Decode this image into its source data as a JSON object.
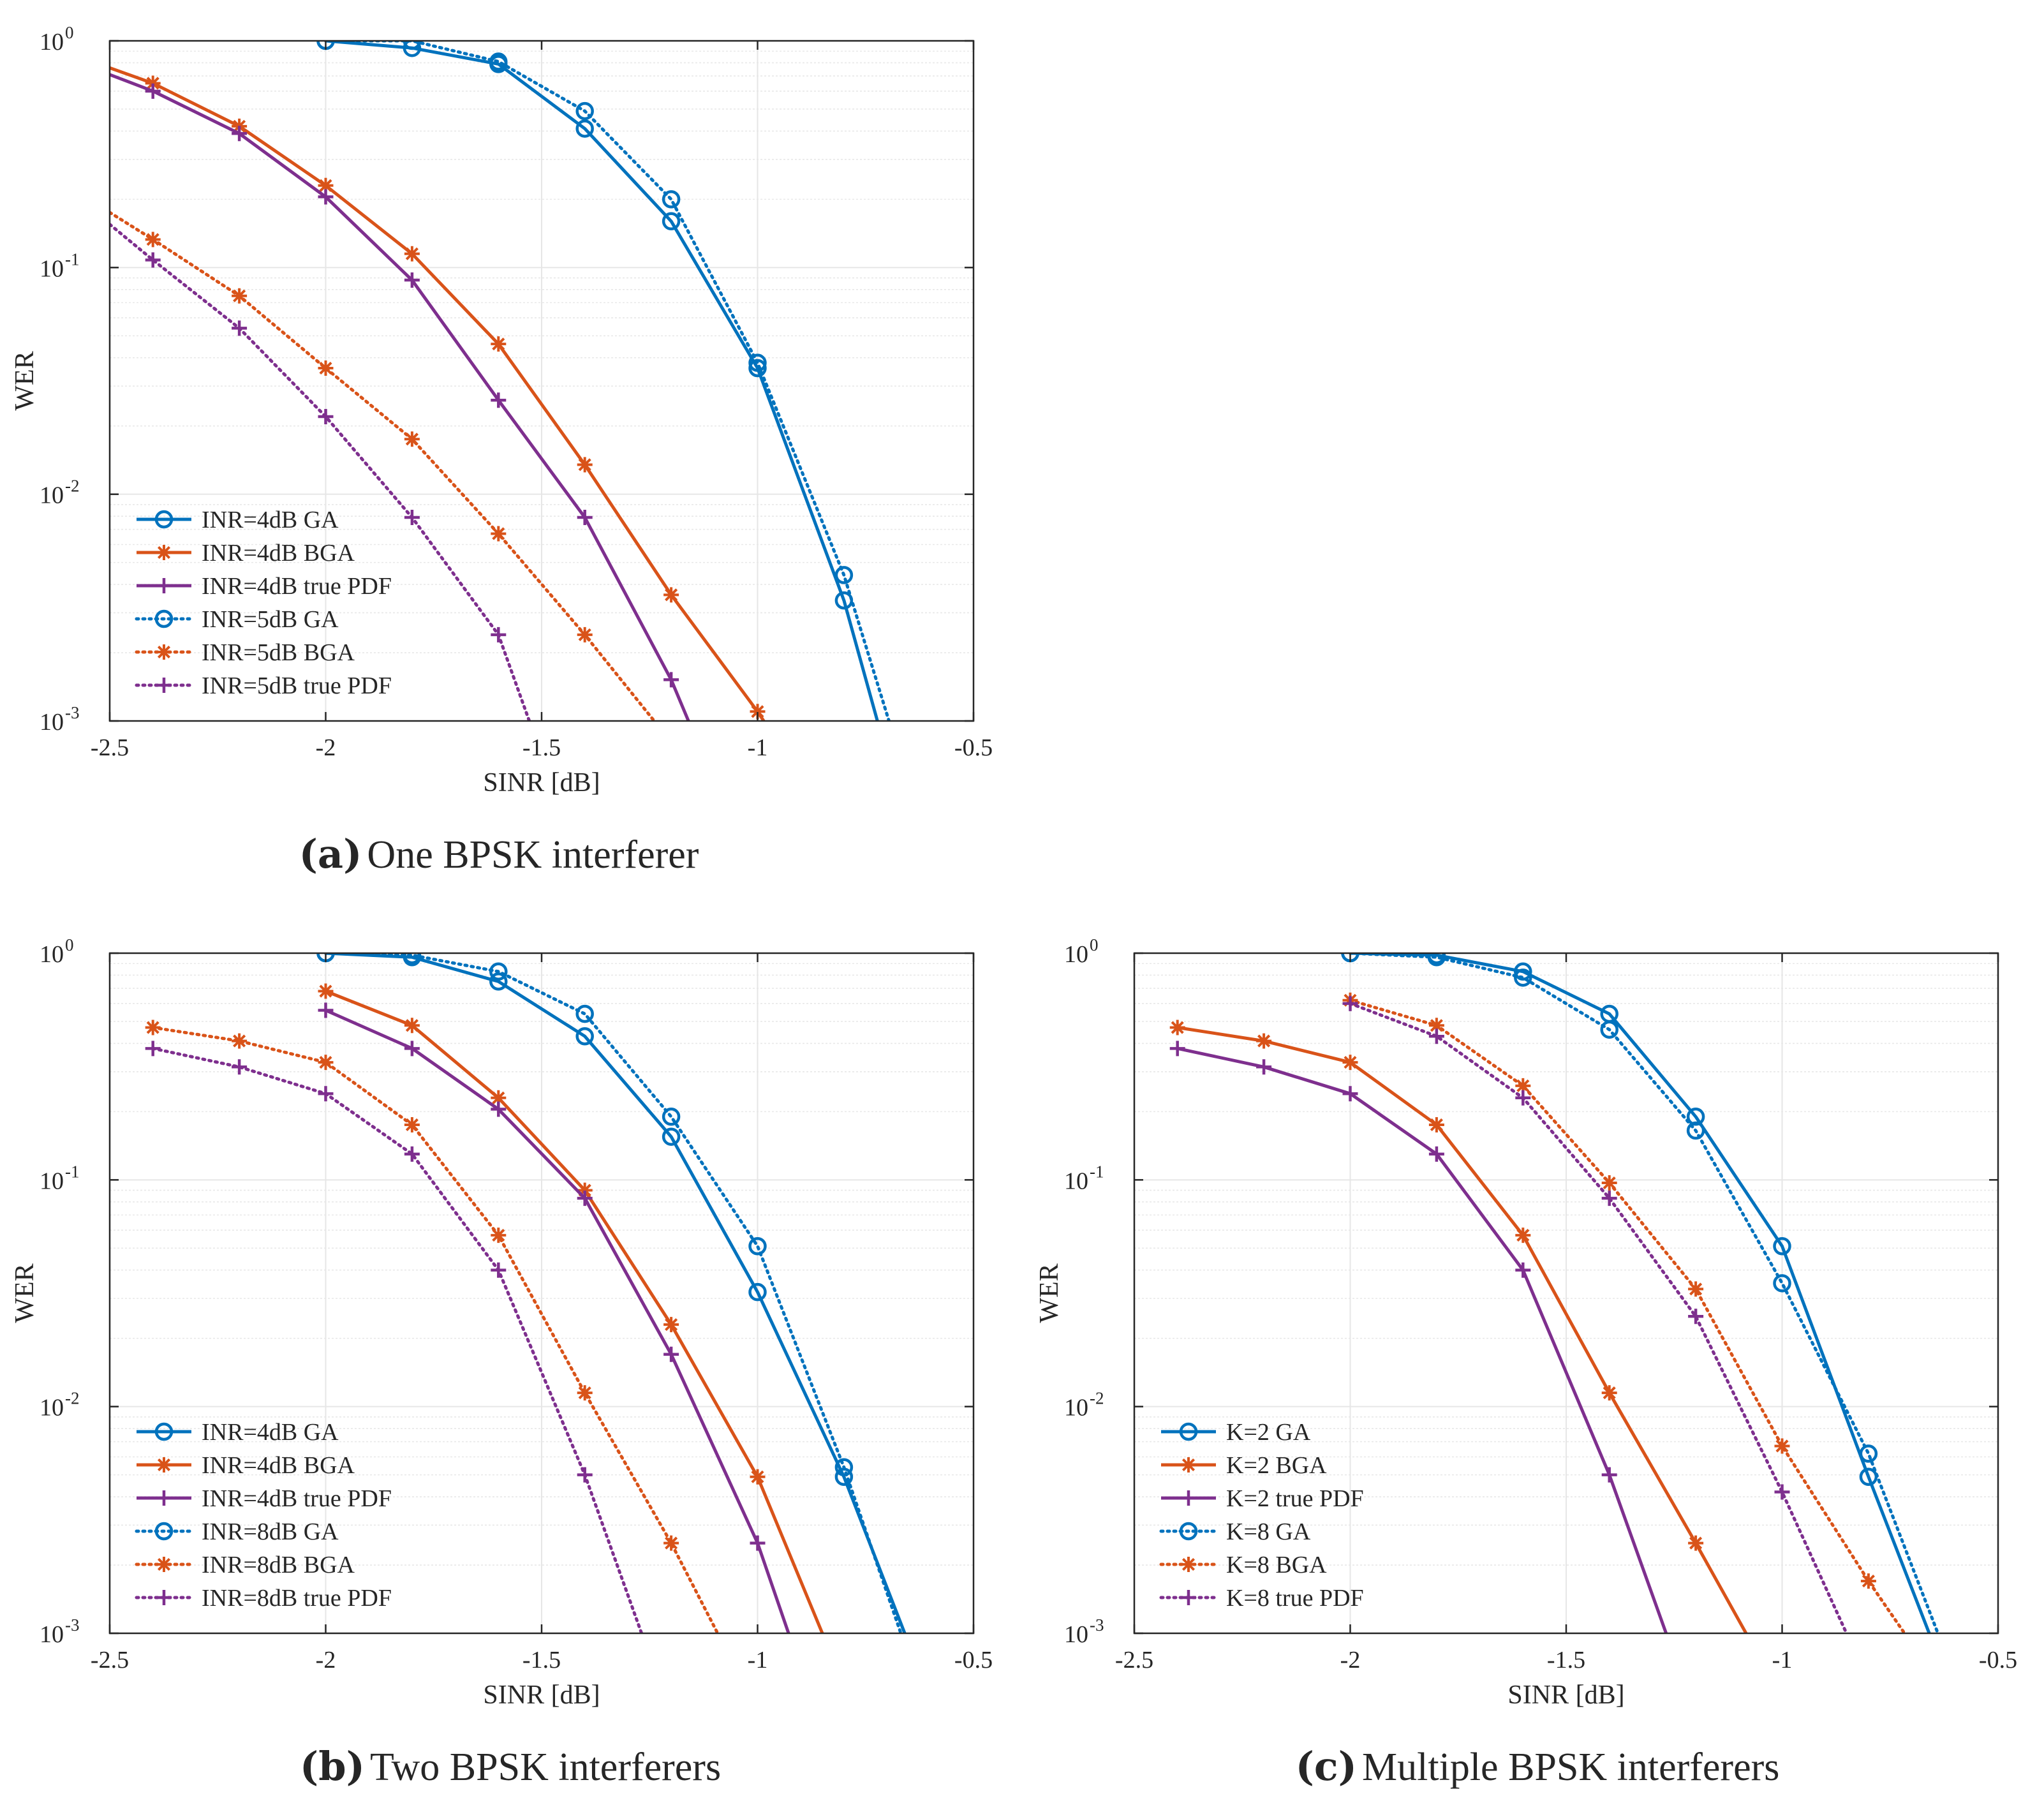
{
  "figure": {
    "captions": [
      {
        "letter": "(a)",
        "text": "One BPSK interferer"
      },
      {
        "letter": "(b)",
        "text": "Two BPSK interferers"
      },
      {
        "letter": "(c)",
        "text": "Multiple BPSK interferers"
      }
    ]
  },
  "colors": {
    "blue": "#0072BD",
    "orange": "#D95319",
    "purple": "#7E2F8E",
    "grid": "#e6e6e6",
    "axis": "#262626"
  },
  "chart_data": [
    {
      "id": "a",
      "type": "line",
      "title": "",
      "xlabel": "SINR [dB]",
      "ylabel": "WER",
      "yscale": "log",
      "xlim": [
        -2.5,
        -0.5
      ],
      "ylim": [
        0.001,
        1
      ],
      "xticks": [
        -2.5,
        -2,
        -1.5,
        -1,
        -0.5
      ],
      "xtick_labels": [
        "-2.5",
        "-2",
        "-1.5",
        "-1",
        "-0.5"
      ],
      "yticks": [
        0.001,
        0.01,
        0.1,
        1
      ],
      "ytick_labels": [
        {
          "base": "10",
          "exp": "-3"
        },
        {
          "base": "10",
          "exp": "-2"
        },
        {
          "base": "10",
          "exp": "-1"
        },
        {
          "base": "10",
          "exp": "0"
        }
      ],
      "grid": true,
      "legend_position": "bottom-left",
      "series": [
        {
          "name": "INR=4dB GA",
          "color": "#0072BD",
          "marker": "circle",
          "style": "solid",
          "x": [
            -2.0,
            -1.8,
            -1.6,
            -1.4,
            -1.2,
            -1.0,
            -0.8,
            -0.7
          ],
          "y": [
            1.0,
            0.93,
            0.79,
            0.41,
            0.16,
            0.036,
            0.0034,
            0.0007
          ]
        },
        {
          "name": "INR=4dB BGA",
          "color": "#D95319",
          "marker": "asterisk",
          "style": "solid",
          "x": [
            -2.5,
            -2.4,
            -2.2,
            -2.0,
            -1.8,
            -1.6,
            -1.4,
            -1.2,
            -1.0,
            -0.97
          ],
          "y": [
            0.76,
            0.65,
            0.42,
            0.23,
            0.115,
            0.046,
            0.0135,
            0.0036,
            0.0011,
            0.0009
          ]
        },
        {
          "name": "INR=4dB true PDF",
          "color": "#7E2F8E",
          "marker": "plus",
          "style": "solid",
          "x": [
            -2.5,
            -2.4,
            -2.2,
            -2.0,
            -1.8,
            -1.6,
            -1.4,
            -1.2,
            -1.15
          ],
          "y": [
            0.71,
            0.6,
            0.39,
            0.205,
            0.088,
            0.026,
            0.0079,
            0.00152,
            0.0009
          ]
        },
        {
          "name": "INR=5dB GA",
          "color": "#0072BD",
          "marker": "circle",
          "style": "dotted",
          "x": [
            -2.0,
            -1.8,
            -1.6,
            -1.4,
            -1.2,
            -1.0,
            -0.8,
            -0.68
          ],
          "y": [
            1.0,
            1.0,
            0.81,
            0.49,
            0.2,
            0.038,
            0.0044,
            0.0008
          ]
        },
        {
          "name": "INR=5dB BGA",
          "color": "#D95319",
          "marker": "asterisk",
          "style": "dotted",
          "x": [
            -2.5,
            -2.4,
            -2.2,
            -2.0,
            -1.8,
            -1.6,
            -1.4,
            -1.22
          ],
          "y": [
            0.175,
            0.133,
            0.075,
            0.036,
            0.0175,
            0.0067,
            0.0024,
            0.0009
          ]
        },
        {
          "name": "INR=5dB true PDF",
          "color": "#7E2F8E",
          "marker": "plus",
          "style": "dotted",
          "x": [
            -2.5,
            -2.4,
            -2.2,
            -2.0,
            -1.8,
            -1.6,
            -1.52
          ],
          "y": [
            0.155,
            0.108,
            0.054,
            0.022,
            0.0079,
            0.0024,
            0.0009
          ]
        }
      ]
    },
    {
      "id": "b",
      "type": "line",
      "title": "",
      "xlabel": "SINR [dB]",
      "ylabel": "WER",
      "yscale": "log",
      "xlim": [
        -2.5,
        -0.5
      ],
      "ylim": [
        0.001,
        1
      ],
      "xticks": [
        -2.5,
        -2,
        -1.5,
        -1,
        -0.5
      ],
      "xtick_labels": [
        "-2.5",
        "-2",
        "-1.5",
        "-1",
        "-0.5"
      ],
      "yticks": [
        0.001,
        0.01,
        0.1,
        1
      ],
      "ytick_labels": [
        {
          "base": "10",
          "exp": "-3"
        },
        {
          "base": "10",
          "exp": "-2"
        },
        {
          "base": "10",
          "exp": "-1"
        },
        {
          "base": "10",
          "exp": "0"
        }
      ],
      "grid": true,
      "legend_position": "bottom-left",
      "series": [
        {
          "name": "INR=4dB GA",
          "color": "#0072BD",
          "marker": "circle",
          "style": "solid",
          "x": [
            -2.0,
            -1.8,
            -1.6,
            -1.4,
            -1.2,
            -1.0,
            -0.8,
            -0.65
          ],
          "y": [
            1.0,
            0.96,
            0.75,
            0.43,
            0.155,
            0.032,
            0.0049,
            0.0009
          ]
        },
        {
          "name": "INR=4dB BGA",
          "color": "#D95319",
          "marker": "asterisk",
          "style": "solid",
          "x": [
            -2.0,
            -1.8,
            -1.6,
            -1.4,
            -1.2,
            -1.0,
            -0.84
          ],
          "y": [
            0.68,
            0.48,
            0.23,
            0.09,
            0.023,
            0.0049,
            0.0009
          ]
        },
        {
          "name": "INR=4dB true PDF",
          "color": "#7E2F8E",
          "marker": "plus",
          "style": "solid",
          "x": [
            -2.0,
            -1.8,
            -1.6,
            -1.4,
            -1.2,
            -1.0,
            -0.92
          ],
          "y": [
            0.56,
            0.38,
            0.205,
            0.083,
            0.017,
            0.0025,
            0.0009
          ]
        },
        {
          "name": "INR=8dB GA",
          "color": "#0072BD",
          "marker": "circle",
          "style": "dotted",
          "x": [
            -2.0,
            -1.8,
            -1.6,
            -1.4,
            -1.2,
            -1.0,
            -0.8,
            -0.66
          ],
          "y": [
            1.0,
            0.98,
            0.83,
            0.54,
            0.19,
            0.051,
            0.0054,
            0.0009
          ]
        },
        {
          "name": "INR=8dB BGA",
          "color": "#D95319",
          "marker": "asterisk",
          "style": "dotted",
          "x": [
            -2.4,
            -2.2,
            -2.0,
            -1.8,
            -1.6,
            -1.4,
            -1.2,
            -1.08
          ],
          "y": [
            0.47,
            0.41,
            0.33,
            0.175,
            0.057,
            0.0115,
            0.0025,
            0.0009
          ]
        },
        {
          "name": "INR=8dB true PDF",
          "color": "#7E2F8E",
          "marker": "plus",
          "style": "dotted",
          "x": [
            -2.4,
            -2.2,
            -2.0,
            -1.8,
            -1.6,
            -1.4,
            -1.26
          ],
          "y": [
            0.38,
            0.315,
            0.24,
            0.13,
            0.04,
            0.005,
            0.0009
          ]
        }
      ]
    },
    {
      "id": "c",
      "type": "line",
      "title": "",
      "xlabel": "SINR [dB]",
      "ylabel": "WER",
      "yscale": "log",
      "xlim": [
        -2.5,
        -0.5
      ],
      "ylim": [
        0.001,
        1
      ],
      "xticks": [
        -2.5,
        -2,
        -1.5,
        -1,
        -0.5
      ],
      "xtick_labels": [
        "-2.5",
        "-2",
        "-1.5",
        "-1",
        "-0.5"
      ],
      "yticks": [
        0.001,
        0.01,
        0.1,
        1
      ],
      "ytick_labels": [
        {
          "base": "10",
          "exp": "-3"
        },
        {
          "base": "10",
          "exp": "-2"
        },
        {
          "base": "10",
          "exp": "-1"
        },
        {
          "base": "10",
          "exp": "0"
        }
      ],
      "grid": true,
      "legend_position": "bottom-left",
      "series": [
        {
          "name": "K=2 GA",
          "color": "#0072BD",
          "marker": "circle",
          "style": "solid",
          "x": [
            -2.0,
            -1.8,
            -1.6,
            -1.4,
            -1.2,
            -1.0,
            -0.8,
            -0.65
          ],
          "y": [
            1.0,
            0.98,
            0.83,
            0.54,
            0.19,
            0.051,
            0.0049,
            0.0009
          ]
        },
        {
          "name": "K=2 BGA",
          "color": "#D95319",
          "marker": "asterisk",
          "style": "solid",
          "x": [
            -2.4,
            -2.2,
            -2.0,
            -1.8,
            -1.6,
            -1.4,
            -1.2,
            -1.07
          ],
          "y": [
            0.47,
            0.41,
            0.33,
            0.175,
            0.057,
            0.0115,
            0.0025,
            0.0009
          ]
        },
        {
          "name": "K=2 true PDF",
          "color": "#7E2F8E",
          "marker": "plus",
          "style": "solid",
          "x": [
            -2.4,
            -2.2,
            -2.0,
            -1.8,
            -1.6,
            -1.4,
            -1.26
          ],
          "y": [
            0.38,
            0.315,
            0.24,
            0.13,
            0.04,
            0.005,
            0.0009
          ]
        },
        {
          "name": "K=8 GA",
          "color": "#0072BD",
          "marker": "circle",
          "style": "dotted",
          "x": [
            -2.0,
            -1.8,
            -1.6,
            -1.4,
            -1.2,
            -1.0,
            -0.8,
            -0.63
          ],
          "y": [
            1.0,
            0.96,
            0.78,
            0.46,
            0.165,
            0.035,
            0.0062,
            0.0009
          ]
        },
        {
          "name": "K=8 BGA",
          "color": "#D95319",
          "marker": "asterisk",
          "style": "dotted",
          "x": [
            -2.0,
            -1.8,
            -1.6,
            -1.4,
            -1.2,
            -1.0,
            -0.8,
            -0.7
          ],
          "y": [
            0.62,
            0.48,
            0.26,
            0.097,
            0.033,
            0.0067,
            0.0017,
            0.0009
          ]
        },
        {
          "name": "K=8 true PDF",
          "color": "#7E2F8E",
          "marker": "plus",
          "style": "dotted",
          "x": [
            -2.0,
            -1.8,
            -1.6,
            -1.4,
            -1.2,
            -1.0,
            -0.84
          ],
          "y": [
            0.6,
            0.43,
            0.23,
            0.083,
            0.025,
            0.0042,
            0.0009
          ]
        }
      ]
    }
  ]
}
